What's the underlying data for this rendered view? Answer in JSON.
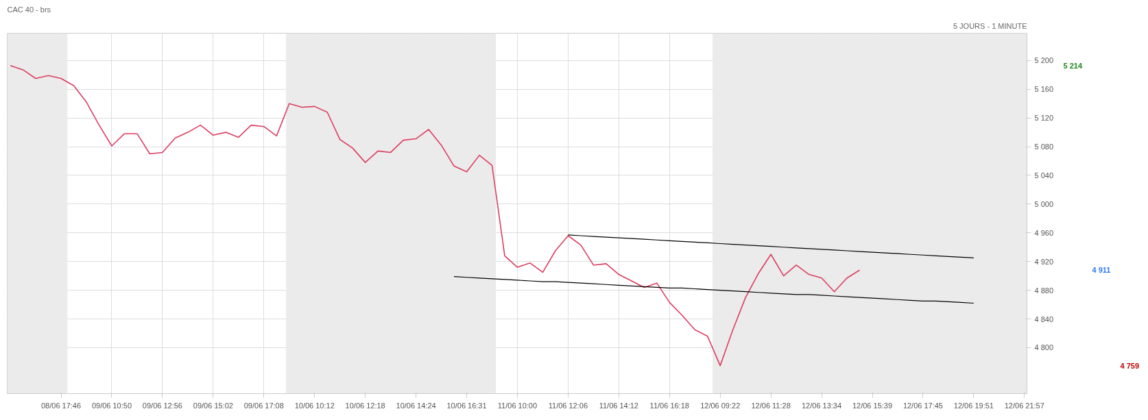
{
  "chart_data": {
    "type": "line",
    "title": "CAC 40 - brs",
    "subtitle": "5 JOURS - 1 MINUTE",
    "ylim": [
      4736,
      5238
    ],
    "yticks": [
      {
        "value": 4800,
        "label": "4 800"
      },
      {
        "value": 4840,
        "label": "4 840"
      },
      {
        "value": 4880,
        "label": "4 880"
      },
      {
        "value": 4920,
        "label": "4 920"
      },
      {
        "value": 4960,
        "label": "4 960"
      },
      {
        "value": 5000,
        "label": "5 000"
      },
      {
        "value": 5040,
        "label": "5 040"
      },
      {
        "value": 5080,
        "label": "5 080"
      },
      {
        "value": 5120,
        "label": "5 120"
      },
      {
        "value": 5160,
        "label": "5 160"
      },
      {
        "value": 5200,
        "label": "5 200"
      }
    ],
    "categories": [
      null,
      null,
      null,
      null,
      "08/06 17:46",
      null,
      null,
      null,
      "09/06 10:50",
      null,
      null,
      null,
      "09/06 12:56",
      null,
      null,
      null,
      "09/06 15:02",
      null,
      null,
      null,
      "09/06 17:08",
      null,
      null,
      null,
      "10/06 10:12",
      null,
      null,
      null,
      "10/06 12:18",
      null,
      null,
      null,
      "10/06 14:24",
      null,
      null,
      null,
      "10/06 16:31",
      null,
      null,
      null,
      "11/06 10:00",
      null,
      null,
      null,
      "11/06 12:06",
      null,
      null,
      null,
      "11/06 14:12",
      null,
      null,
      null,
      "11/06 16:18",
      null,
      null,
      null,
      "12/06 09:22",
      null,
      null,
      null,
      "12/06 11:28",
      null,
      null,
      null,
      "12/06 13:34",
      null,
      null,
      null,
      "12/06 15:39",
      null,
      null,
      null,
      "12/06 17:45",
      null,
      null,
      null,
      "12/06 19:51",
      null,
      null,
      null,
      "12/06 21:57"
    ],
    "grid": true,
    "series": [
      {
        "color": "#dc3d5f",
        "values": [
          5193,
          5187,
          5175,
          5179,
          5175,
          5165,
          5142,
          5110,
          5081,
          5098,
          5098,
          5070,
          5072,
          5092,
          5100,
          5110,
          5096,
          5100,
          5093,
          5110,
          5108,
          5095,
          5140,
          5135,
          5136,
          5128,
          5090,
          5078,
          5058,
          5074,
          5072,
          5089,
          5091,
          5104,
          5082,
          5053,
          5045,
          5068,
          5054,
          4928,
          4912,
          4918,
          4905,
          4935,
          4956,
          4943,
          4915,
          4917,
          4902,
          4893,
          4884,
          4890,
          4863,
          4845,
          4825,
          4816,
          4775,
          4825,
          4870,
          4903,
          4930,
          4900,
          4915,
          4902,
          4897,
          4878,
          4897,
          4908,
          null,
          null,
          null,
          null,
          null,
          null,
          null,
          null,
          null,
          null,
          null,
          null,
          null
        ]
      },
      {
        "type": "line",
        "color": "#000000",
        "values": [
          null,
          null,
          null,
          null,
          null,
          null,
          null,
          null,
          null,
          null,
          null,
          null,
          null,
          null,
          null,
          null,
          null,
          null,
          null,
          null,
          null,
          null,
          null,
          null,
          null,
          null,
          null,
          null,
          null,
          null,
          null,
          null,
          null,
          null,
          null,
          null,
          null,
          null,
          null,
          null,
          null,
          null,
          null,
          null,
          4957,
          4956,
          4955,
          4954,
          4953,
          4952,
          4951,
          4950,
          4949,
          4948,
          4947,
          4946,
          4945,
          4944,
          4943,
          4942,
          4941,
          4940,
          4939,
          4938,
          4937,
          4936,
          4935,
          4934,
          4933,
          4932,
          4931,
          4930,
          4929,
          4928,
          4927,
          4926,
          4925,
          null,
          null,
          null,
          null
        ]
      },
      {
        "type": "line",
        "color": "#000000",
        "values": [
          null,
          null,
          null,
          null,
          null,
          null,
          null,
          null,
          null,
          null,
          null,
          null,
          null,
          null,
          null,
          null,
          null,
          null,
          null,
          null,
          null,
          null,
          null,
          null,
          null,
          null,
          null,
          null,
          null,
          null,
          null,
          null,
          null,
          null,
          null,
          4899,
          4898,
          4897,
          4896,
          4895,
          4894,
          4893,
          4892,
          4892,
          4891,
          4890,
          4889,
          4888,
          4887,
          4886,
          4885,
          4884,
          4883,
          4883,
          4882,
          4881,
          4880,
          4879,
          4878,
          4877,
          4876,
          4875,
          4874,
          4874,
          4873,
          4872,
          4871,
          4870,
          4869,
          4868,
          4867,
          4866,
          4865,
          4865,
          4864,
          4863,
          4862,
          null,
          null,
          null,
          null
        ]
      }
    ],
    "annotations": [
      "5 214",
      "4 911",
      "4 759"
    ]
  }
}
